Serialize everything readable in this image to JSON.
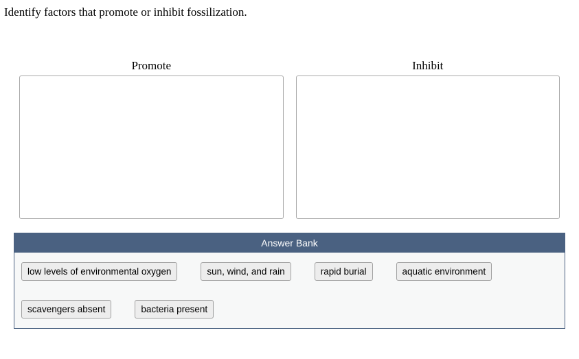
{
  "question": "Identify factors that promote or inhibit fossilization.",
  "bins": {
    "promote": {
      "label": "Promote"
    },
    "inhibit": {
      "label": "Inhibit"
    }
  },
  "answer_bank": {
    "title": "Answer Bank",
    "items": [
      "low levels of environmental oxygen",
      "sun, wind, and rain",
      "rapid burial",
      "aquatic environment",
      "scavengers absent",
      "bacteria present"
    ],
    "header_bg": "#4a6181",
    "header_fg": "#ffffff",
    "body_bg": "#f7f8f8",
    "chip_bg": "#ededed",
    "chip_border": "#a0a0a0"
  },
  "dropzone": {
    "border_color": "#a9a9a9",
    "bg": "#ffffff"
  }
}
